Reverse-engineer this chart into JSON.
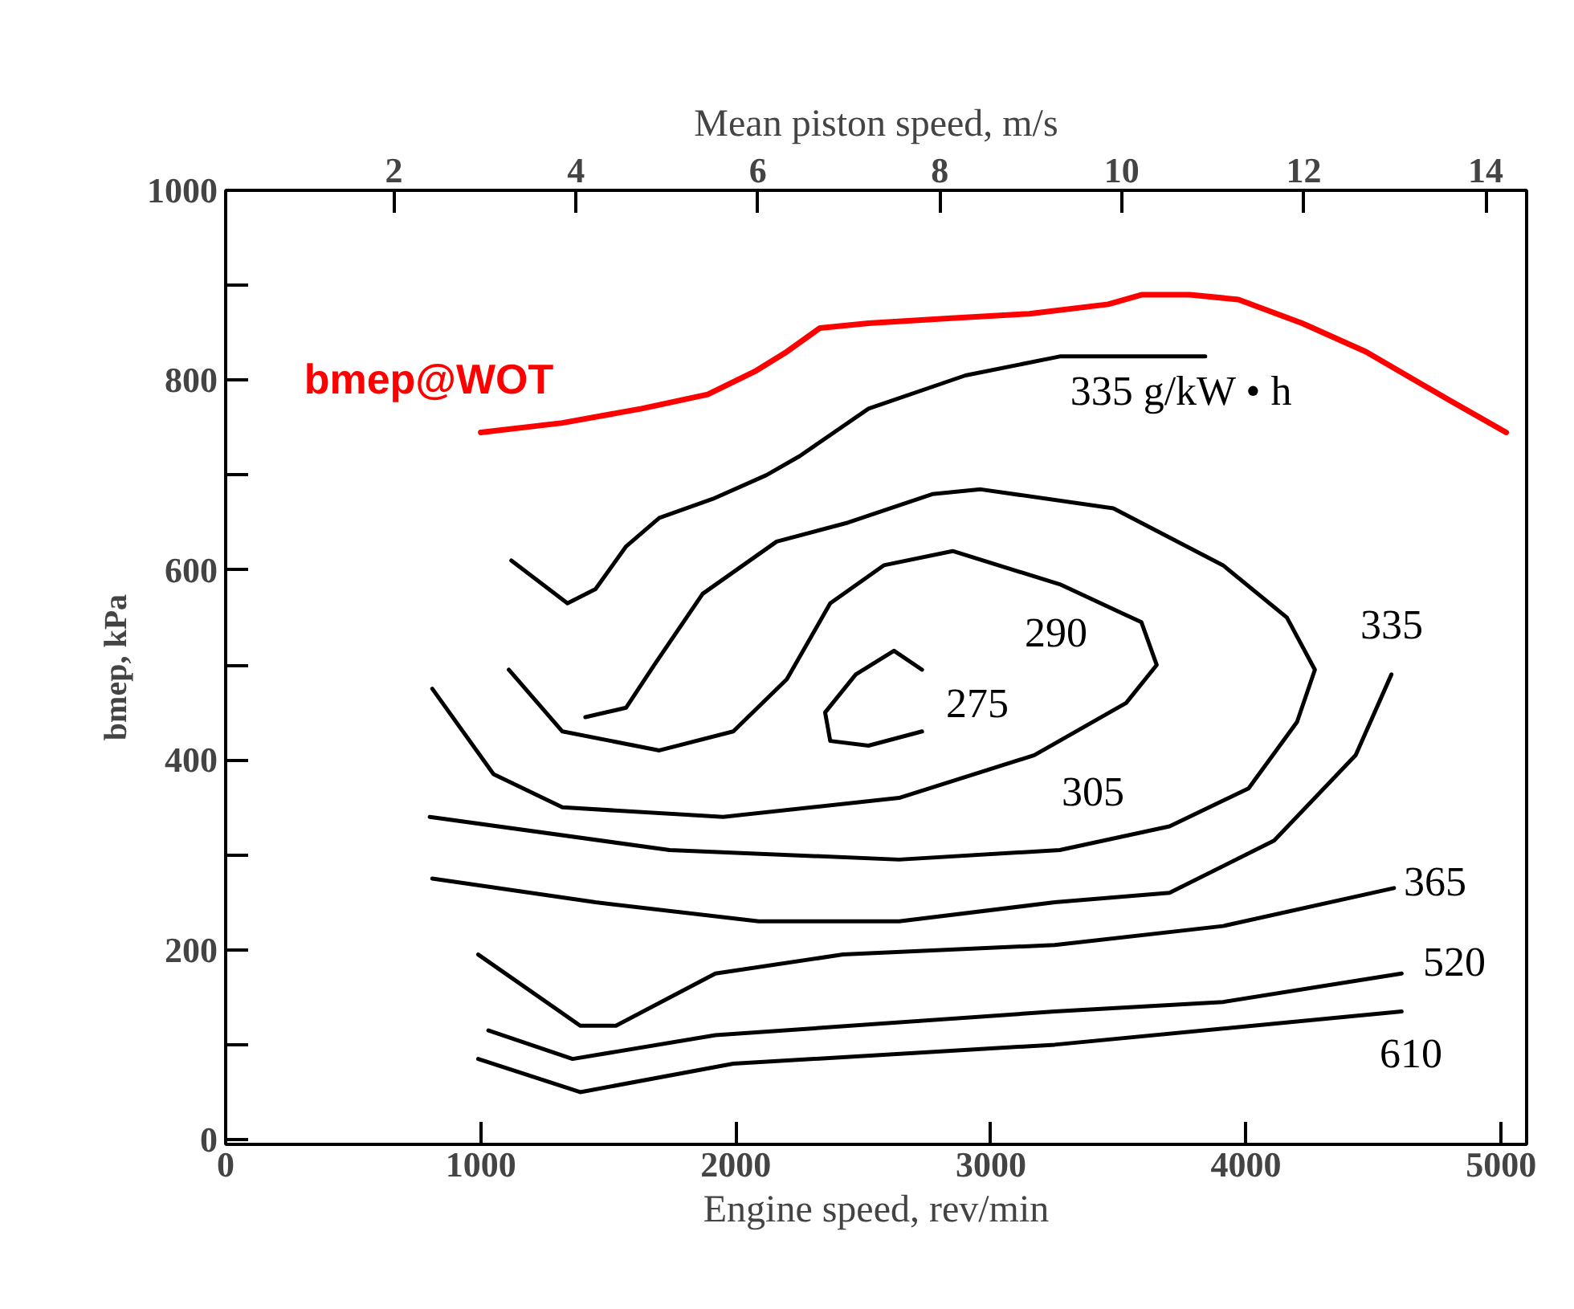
{
  "chart_data": {
    "type": "line",
    "xlabel": "Engine speed, rev/min",
    "ylabel": "bmep, kPa",
    "x2label": "Mean piston speed, m/s",
    "xlim": [
      0,
      5100
    ],
    "xticks": [
      0,
      1000,
      2000,
      3000,
      4000,
      5000
    ],
    "x2lim": [
      0.15,
      14.45
    ],
    "x2ticks": [
      2,
      4,
      6,
      8,
      10,
      12,
      14
    ],
    "ylim": [
      -5,
      1000
    ],
    "yticks": [
      0,
      {
        "value": 100,
        "label": null
      },
      200,
      {
        "value": 300,
        "label": null
      },
      400,
      {
        "value": 500,
        "label": null
      },
      600,
      {
        "value": 700,
        "label": null
      },
      800,
      {
        "value": 900,
        "label": null
      },
      1000
    ],
    "grid": false,
    "legend": false,
    "series": [
      {
        "name": "bmep@WOT",
        "color": "#ff0000",
        "x": [
          1000,
          1320,
          1630,
          1890,
          2080,
          2200,
          2330,
          2520,
          2830,
          3150,
          3460,
          3590,
          3780,
          3970,
          4220,
          4470,
          4790,
          5020
        ],
        "values": [
          745,
          755,
          770,
          785,
          810,
          830,
          855,
          860,
          865,
          870,
          880,
          890,
          890,
          885,
          860,
          830,
          780,
          745
        ]
      },
      {
        "color": "#000000",
        "x": [
          1120,
          1340,
          1450,
          1570,
          1700,
          1910,
          2120,
          2250,
          2520,
          2900,
          3270,
          3840
        ],
        "values": [
          610,
          565,
          580,
          625,
          655,
          675,
          700,
          720,
          770,
          805,
          825,
          825
        ]
      },
      {
        "color": "#000000",
        "x": [
          1410,
          1570,
          1680,
          1870,
          2160,
          2440,
          2770,
          2960,
          3480,
          3910,
          4160,
          4270,
          4200,
          4010,
          3700,
          3270,
          2640,
          1740,
          800
        ],
        "values": [
          445,
          455,
          500,
          575,
          630,
          650,
          680,
          685,
          665,
          605,
          550,
          495,
          440,
          370,
          330,
          305,
          295,
          305,
          340
        ]
      },
      {
        "color": "#000000",
        "x": [
          1110,
          1320,
          1700,
          1990,
          2200,
          2370,
          2580,
          2850,
          3270,
          3590,
          3650,
          3530,
          3170,
          2640,
          1950,
          1320,
          1050,
          810
        ],
        "values": [
          495,
          430,
          410,
          430,
          485,
          565,
          605,
          620,
          585,
          545,
          500,
          460,
          405,
          360,
          340,
          350,
          385,
          475
        ]
      },
      {
        "color": "#000000",
        "x": [
          2730,
          2620,
          2470,
          2350,
          2370,
          2520,
          2730
        ],
        "values": [
          495,
          515,
          490,
          450,
          420,
          415,
          430
        ]
      },
      {
        "color": "#000000",
        "x": [
          810,
          1450,
          2090,
          2640,
          3250,
          3700,
          4110,
          4430,
          4570
        ],
        "values": [
          275,
          250,
          230,
          230,
          250,
          260,
          315,
          405,
          490
        ]
      },
      {
        "color": "#000000",
        "x": [
          990,
          1390,
          1530,
          1920,
          2420,
          3250,
          3910,
          4580
        ],
        "values": [
          195,
          120,
          120,
          175,
          195,
          205,
          225,
          265
        ]
      },
      {
        "color": "#000000",
        "x": [
          1030,
          1360,
          1920,
          3250,
          3910,
          4610
        ],
        "values": [
          115,
          85,
          110,
          135,
          145,
          175
        ]
      },
      {
        "color": "#000000",
        "x": [
          990,
          1390,
          1990,
          3250,
          4610
        ],
        "values": [
          85,
          50,
          80,
          100,
          135
        ]
      }
    ],
    "annotations": [
      "335 g/kW • h",
      "335",
      "290",
      "275",
      "305",
      "365",
      "520",
      "610"
    ]
  }
}
